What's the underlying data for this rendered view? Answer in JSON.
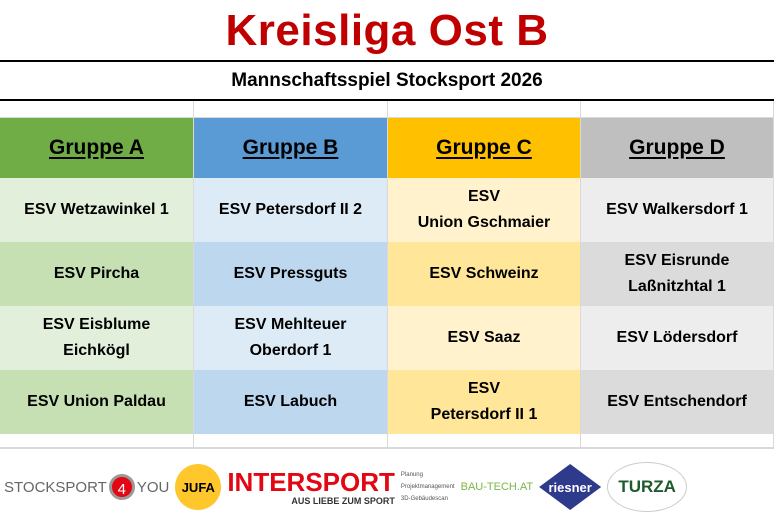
{
  "title": "Kreisliga Ost B",
  "subtitle": "Mannschaftsspiel Stocksport 2026",
  "colors": {
    "title": "#C00000",
    "A": "#70AD47",
    "B": "#5B9BD5",
    "C": "#FFC000",
    "D": "#BFBFBF"
  },
  "groups": [
    {
      "name": "Gruppe A",
      "teams": [
        "ESV Wetzawinkel 1",
        "ESV Pircha",
        "ESV Eisblume\nEichkögl",
        "ESV Union Paldau"
      ]
    },
    {
      "name": "Gruppe B",
      "teams": [
        "ESV Petersdorf II 2",
        "ESV Pressguts",
        "ESV Mehlteuer\nOberdorf 1",
        "ESV Labuch"
      ]
    },
    {
      "name": "Gruppe C",
      "teams": [
        "ESV\nUnion Gschmaier",
        "ESV Schweinz",
        "ESV Saaz",
        "ESV\nPetersdorf II 1"
      ]
    },
    {
      "name": "Gruppe D",
      "teams": [
        "ESV Walkersdorf 1",
        "ESV Eisrunde\nLaßnitzhtal 1",
        "ESV Lödersdorf",
        "ESV Entschendorf"
      ]
    }
  ],
  "sponsors": {
    "stocksport": "STOCKSPORT",
    "four": "4",
    "you": "YOU",
    "jufa": "JUFA",
    "intersport": "INTERSPORT",
    "intersport_tag": "AUS LIEBE ZUM SPORT",
    "bautech": "BAU-TECH.AT",
    "bautech_list": [
      "Planung",
      "Projektmanagement",
      "3D-Gebäudescan"
    ],
    "riesner": "riesner",
    "turza": "TURZA"
  }
}
